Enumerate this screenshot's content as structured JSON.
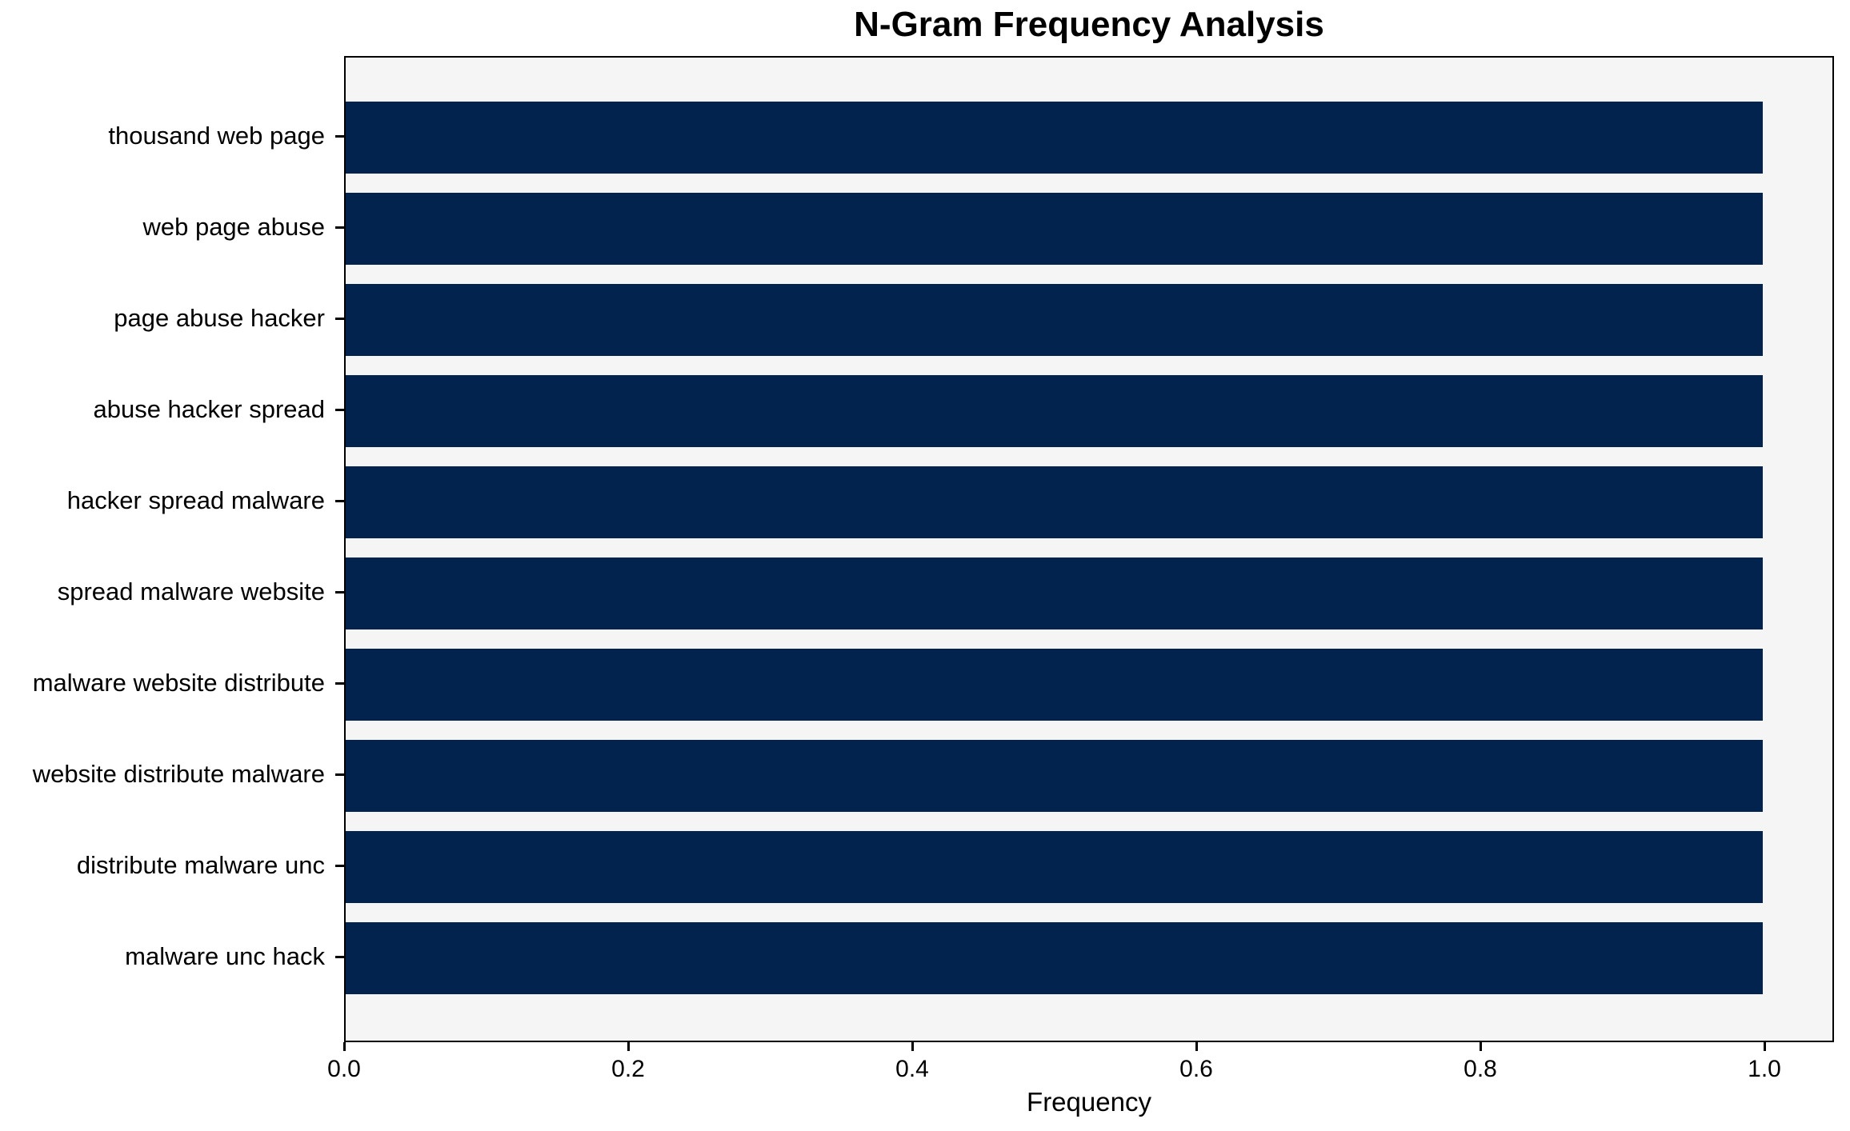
{
  "chart_data": {
    "type": "bar",
    "orientation": "horizontal",
    "title": "N-Gram Frequency Analysis",
    "xlabel": "Frequency",
    "ylabel": "",
    "categories": [
      "thousand web page",
      "web page abuse",
      "page abuse hacker",
      "abuse hacker spread",
      "hacker spread malware",
      "spread malware website",
      "malware website distribute",
      "website distribute malware",
      "distribute malware unc",
      "malware unc hack"
    ],
    "values": [
      1.0,
      1.0,
      1.0,
      1.0,
      1.0,
      1.0,
      1.0,
      1.0,
      1.0,
      1.0
    ],
    "x_ticks": [
      "0.0",
      "0.2",
      "0.4",
      "0.6",
      "0.8",
      "1.0"
    ],
    "x_tick_values": [
      0.0,
      0.2,
      0.4,
      0.6,
      0.8,
      1.0
    ],
    "xlim": [
      0.0,
      1.049
    ],
    "grid": false,
    "legend": null,
    "colors": {
      "bar": "#02234d",
      "plot_background": "#f5f5f5",
      "figure_background": "#ffffff",
      "axis_frame": "#000000",
      "text": "#000000"
    }
  }
}
